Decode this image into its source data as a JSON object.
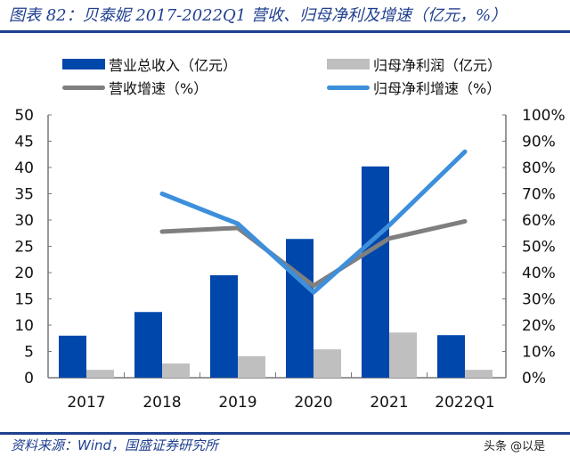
{
  "title": "图表 82：贝泰妮 2017-2022Q1 营收、归母净利及增速（亿元，%）",
  "source": "资料来源：Wind，国盛证券研究所",
  "watermark": "头条 @以是",
  "chart_data": {
    "type": "bar+line",
    "categories": [
      "2017",
      "2018",
      "2019",
      "2020",
      "2021",
      "2022Q1"
    ],
    "y_left": {
      "range": [
        0,
        50
      ],
      "ticks": [
        "0",
        "5",
        "10",
        "15",
        "20",
        "25",
        "30",
        "35",
        "40",
        "45",
        "50"
      ]
    },
    "y_right": {
      "range": [
        0,
        100
      ],
      "ticks": [
        "0%",
        "10%",
        "20%",
        "30%",
        "40%",
        "50%",
        "60%",
        "70%",
        "80%",
        "90%",
        "100%"
      ]
    },
    "grid": false,
    "legend_position": "top",
    "series": [
      {
        "name": "营业总收入（亿元）",
        "type": "bar",
        "axis": "left",
        "color": "#0047AB",
        "values": [
          8.0,
          12.5,
          19.5,
          26.4,
          40.2,
          8.1
        ]
      },
      {
        "name": "归母净利润（亿元）",
        "type": "bar",
        "axis": "left",
        "color": "#BFBFBF",
        "values": [
          1.5,
          2.7,
          4.1,
          5.4,
          8.6,
          1.5
        ]
      },
      {
        "name": "营收增速（%）",
        "type": "line",
        "axis": "right",
        "color": "#7F7F7F",
        "values": [
          null,
          55.6,
          57.0,
          35.0,
          53.0,
          59.5
        ]
      },
      {
        "name": "归母净利增速（%）",
        "type": "line",
        "axis": "right",
        "color": "#3D8FDB",
        "values": [
          null,
          70.0,
          58.6,
          32.5,
          58.0,
          86.0
        ]
      }
    ]
  }
}
